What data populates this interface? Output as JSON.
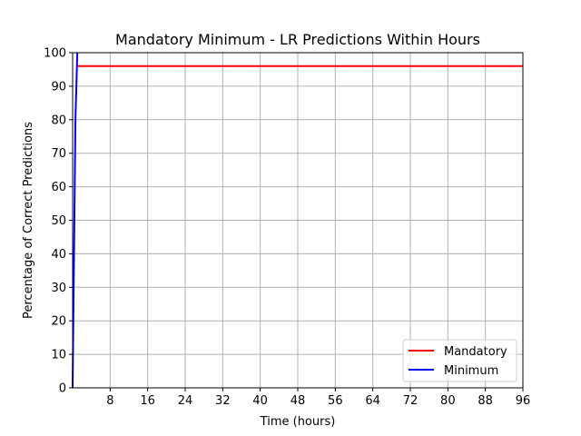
{
  "chart_data": {
    "type": "line",
    "title": "Mandatory Minimum - LR Predictions Within Hours",
    "xlabel": "Time (hours)",
    "ylabel": "Percentage of Correct Predictions",
    "xlim": [
      0,
      96
    ],
    "ylim": [
      0,
      100
    ],
    "xticks": [
      8,
      16,
      24,
      32,
      40,
      48,
      56,
      64,
      72,
      80,
      88,
      96
    ],
    "yticks": [
      0,
      10,
      20,
      30,
      40,
      50,
      60,
      70,
      80,
      90,
      100
    ],
    "grid": true,
    "legend_position": "lower-right",
    "series": [
      {
        "name": "Mandatory",
        "color": "#ff0000",
        "x": [
          1,
          96
        ],
        "y": [
          96,
          96
        ]
      },
      {
        "name": "Minimum",
        "color": "#0000ff",
        "x": [
          0,
          0.3,
          0.6,
          1
        ],
        "y": [
          0,
          40,
          80,
          100
        ]
      }
    ]
  }
}
